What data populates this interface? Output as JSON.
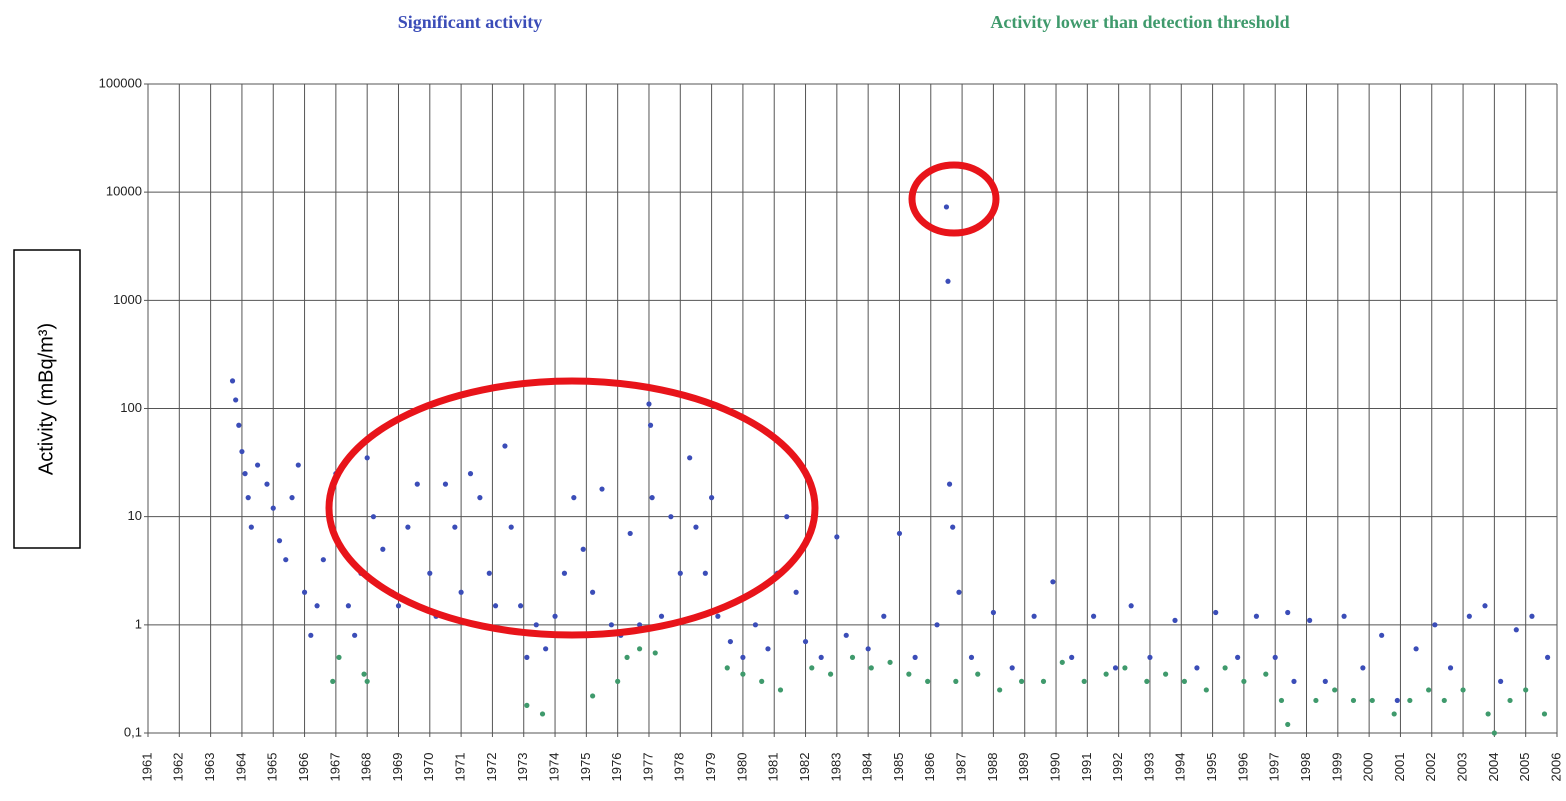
{
  "chart_data": {
    "type": "scatter",
    "y_label": "Activity (mBq/m³)",
    "log_y": true,
    "grid": true,
    "legend": "top",
    "xlim": [
      1961,
      2006
    ],
    "xticks": [
      1961,
      1962,
      1963,
      1964,
      1965,
      1966,
      1967,
      1968,
      1969,
      1970,
      1971,
      1972,
      1973,
      1974,
      1975,
      1976,
      1977,
      1978,
      1979,
      1980,
      1981,
      1982,
      1983,
      1984,
      1985,
      1986,
      1987,
      1988,
      1989,
      1990,
      1991,
      1992,
      1993,
      1994,
      1995,
      1996,
      1997,
      1998,
      1999,
      2000,
      2001,
      2002,
      2003,
      2004,
      2005,
      2006
    ],
    "ylim": [
      0.1,
      100000
    ],
    "yticks": [
      {
        "value": 0.1,
        "label": "0,1"
      },
      1,
      10,
      100,
      1000,
      10000,
      100000
    ],
    "series": [
      {
        "name": "Significant activity",
        "color": "#3b4db8",
        "x": [
          1963.7,
          1963.8,
          1963.9,
          1964.0,
          1964.1,
          1964.2,
          1964.3,
          1964.5,
          1964.8,
          1965.0,
          1965.2,
          1965.4,
          1965.6,
          1965.8,
          1966.0,
          1966.2,
          1966.4,
          1966.6,
          1966.8,
          1967.0,
          1967.2,
          1967.4,
          1967.6,
          1967.8,
          1968.0,
          1968.2,
          1968.5,
          1968.8,
          1969.0,
          1969.3,
          1969.6,
          1970.0,
          1970.2,
          1970.5,
          1970.8,
          1971.0,
          1971.3,
          1971.6,
          1971.9,
          1972.1,
          1972.4,
          1972.6,
          1972.9,
          1973.1,
          1973.4,
          1973.7,
          1974.0,
          1974.3,
          1974.6,
          1974.9,
          1975.2,
          1975.5,
          1975.8,
          1976.1,
          1976.4,
          1976.7,
          1977.0,
          1977.05,
          1977.1,
          1977.4,
          1977.7,
          1978.0,
          1978.3,
          1978.5,
          1978.8,
          1979.0,
          1979.2,
          1979.6,
          1980.0,
          1980.4,
          1980.8,
          1981.1,
          1981.4,
          1981.7,
          1982.0,
          1982.5,
          1983.0,
          1983.3,
          1984.0,
          1984.5,
          1985.0,
          1985.5,
          1986.2,
          1986.5,
          1986.55,
          1986.6,
          1986.7,
          1986.9,
          1987.3,
          1988.0,
          1988.6,
          1989.3,
          1989.9,
          1990.5,
          1991.2,
          1991.9,
          1992.4,
          1993.0,
          1993.8,
          1994.5,
          1995.1,
          1995.8,
          1996.4,
          1997.0,
          1997.4,
          1997.6,
          1998.1,
          1998.6,
          1999.2,
          1999.8,
          2000.4,
          2000.9,
          2001.5,
          2002.1,
          2002.6,
          2003.2,
          2003.7,
          2004.2,
          2004.7,
          2005.2,
          2005.7
        ],
        "values": [
          180,
          120,
          70,
          40,
          25,
          15,
          8,
          30,
          20,
          12,
          6,
          4,
          15,
          30,
          2,
          0.8,
          1.5,
          4,
          10,
          25,
          5,
          1.5,
          0.8,
          3,
          35,
          10,
          5,
          2,
          1.5,
          8,
          20,
          3,
          1.2,
          20,
          8,
          2,
          25,
          15,
          3,
          1.5,
          45,
          8,
          1.5,
          0.5,
          1.0,
          0.6,
          1.2,
          3,
          15,
          5,
          2,
          18,
          1,
          0.8,
          7,
          1.0,
          110,
          70,
          15,
          1.2,
          10,
          3,
          35,
          8,
          3,
          15,
          1.2,
          0.7,
          0.5,
          1.0,
          0.6,
          3,
          10,
          2,
          0.7,
          0.5,
          6.5,
          0.8,
          0.6,
          1.2,
          7,
          0.5,
          1.0,
          7300,
          1500,
          20,
          8,
          2,
          0.5,
          1.3,
          0.4,
          1.2,
          2.5,
          0.5,
          1.2,
          0.4,
          1.5,
          0.5,
          1.1,
          0.4,
          1.3,
          0.5,
          1.2,
          0.5,
          1.3,
          0.3,
          1.1,
          0.3,
          1.2,
          0.4,
          0.8,
          0.2,
          0.6,
          1.0,
          0.4,
          1.2,
          1.5,
          0.3,
          0.9,
          1.2,
          0.5
        ]
      },
      {
        "name": "Activity lower than detection threshold",
        "color": "#3f9a6c",
        "x": [
          1966.9,
          1967.1,
          1967.9,
          1968.0,
          1973.1,
          1973.6,
          1975.2,
          1976.0,
          1976.3,
          1976.7,
          1977.2,
          1979.5,
          1980.0,
          1980.6,
          1981.2,
          1982.2,
          1982.8,
          1983.5,
          1984.1,
          1984.7,
          1985.3,
          1985.9,
          1986.8,
          1987.5,
          1988.2,
          1988.9,
          1989.6,
          1990.2,
          1990.9,
          1991.6,
          1992.2,
          1992.9,
          1993.5,
          1994.1,
          1994.8,
          1995.4,
          1996.0,
          1996.7,
          1997.2,
          1997.4,
          1998.3,
          1998.9,
          1999.5,
          2000.1,
          2000.8,
          2001.3,
          2001.9,
          2002.4,
          2003.0,
          2003.8,
          2004.0,
          2004.5,
          2005.0,
          2005.6
        ],
        "values": [
          0.3,
          0.5,
          0.35,
          0.3,
          0.18,
          0.15,
          0.22,
          0.3,
          0.5,
          0.6,
          0.55,
          0.4,
          0.35,
          0.3,
          0.25,
          0.4,
          0.35,
          0.5,
          0.4,
          0.45,
          0.35,
          0.3,
          0.3,
          0.35,
          0.25,
          0.3,
          0.3,
          0.45,
          0.3,
          0.35,
          0.4,
          0.3,
          0.35,
          0.3,
          0.25,
          0.4,
          0.3,
          0.35,
          0.2,
          0.12,
          0.2,
          0.25,
          0.2,
          0.2,
          0.15,
          0.2,
          0.25,
          0.2,
          0.25,
          0.15,
          0.1,
          0.2,
          0.25,
          0.15
        ]
      }
    ]
  }
}
